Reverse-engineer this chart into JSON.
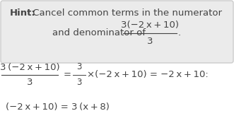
{
  "bg_color": "#f0f0f0",
  "white": "#ffffff",
  "text_color": "#444444",
  "hint_box_color": "#ebebeb",
  "hint_box_edge": "#cccccc",
  "font_size": 9.5,
  "hint_bold": "Hint:",
  "hint_rest": " Cancel common terms in the numerator",
  "hint_line2_pre": "and denominator of ",
  "hint_frac_num": "3(−2 x + 10)",
  "hint_frac_den": "3",
  "period": ".",
  "main_frac_num": "3 (−2 x + 10)",
  "main_frac_den": "3",
  "eq_small_num": "3",
  "eq_small_den": "3",
  "eq_rest": "×(−2 x + 10) = −2 x + 10:",
  "line2": "(−2 x + 10) = 3 (x + 8)"
}
